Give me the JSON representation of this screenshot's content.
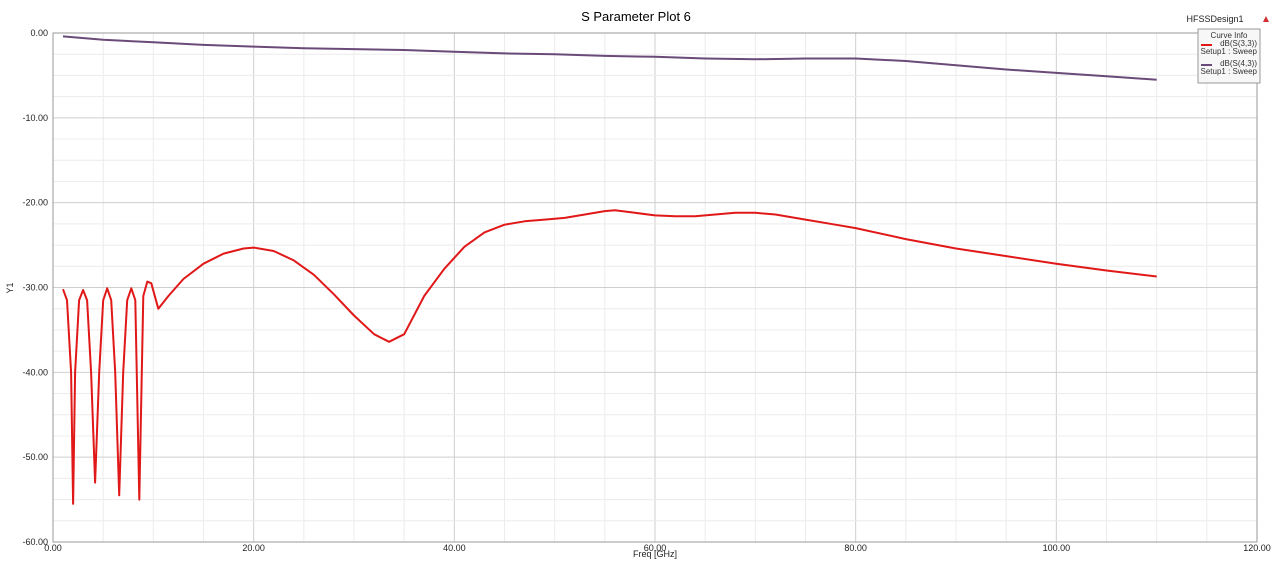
{
  "design_name": "HFSSDesign1",
  "colors": {
    "s11": "#e01818",
    "s21": "#6a4a78",
    "grid_major": "#cfcfcf",
    "grid_minor": "#ececec",
    "legend_fill": "#f7f7f7"
  },
  "chart_data": {
    "type": "line",
    "title": "S Parameter Plot 6",
    "xlabel": "Freq [GHz]",
    "ylabel": "Y1",
    "xlim": [
      0,
      120
    ],
    "ylim": [
      -60,
      0
    ],
    "grid": true,
    "legend_placement": "top-right",
    "legend_title": "Curve Info",
    "x_ticks": [
      "0.00",
      "20.00",
      "40.00",
      "60.00",
      "80.00",
      "100.00",
      "120.00"
    ],
    "y_ticks": [
      "0.00",
      "-10.00",
      "-20.00",
      "-30.00",
      "-40.00",
      "-50.00",
      "-60.00"
    ],
    "series": [
      {
        "name": "dB(S(3,3))",
        "setup": "Setup1 : Sweep",
        "color": "#e01818",
        "x": [
          1.0,
          1.4,
          1.8,
          2.0,
          2.2,
          2.6,
          3.0,
          3.4,
          3.8,
          4.2,
          4.6,
          5.0,
          5.4,
          5.8,
          6.2,
          6.6,
          7.0,
          7.4,
          7.8,
          8.2,
          8.6,
          9.0,
          9.4,
          9.8,
          10.5,
          11.5,
          13,
          15,
          17,
          19,
          20,
          22,
          24,
          26,
          28,
          30,
          32,
          33.5,
          35,
          37,
          39,
          41,
          43,
          45,
          47,
          49,
          51,
          53,
          55,
          56,
          58,
          60,
          62,
          64,
          66,
          68,
          70,
          72,
          75,
          78,
          80,
          85,
          90,
          95,
          100,
          105,
          110
        ],
        "y": [
          -30.2,
          -31.5,
          -40,
          -55.5,
          -40,
          -31.5,
          -30.3,
          -31.5,
          -40,
          -53,
          -40,
          -31.5,
          -30.1,
          -31.5,
          -40,
          -54.5,
          -40,
          -31.5,
          -30.1,
          -31.5,
          -55,
          -31,
          -29.3,
          -29.5,
          -32.5,
          -31.0,
          -29.0,
          -27.2,
          -26.0,
          -25.4,
          -25.3,
          -25.7,
          -26.8,
          -28.5,
          -30.8,
          -33.3,
          -35.5,
          -36.4,
          -35.5,
          -31.0,
          -27.8,
          -25.2,
          -23.5,
          -22.6,
          -22.2,
          -22.0,
          -21.8,
          -21.4,
          -21.0,
          -20.9,
          -21.2,
          -21.5,
          -21.6,
          -21.6,
          -21.4,
          -21.2,
          -21.2,
          -21.4,
          -22.0,
          -22.6,
          -23.0,
          -24.3,
          -25.4,
          -26.3,
          -27.2,
          -28.0,
          -28.7
        ]
      },
      {
        "name": "dB(S(4,3))",
        "setup": "Setup1 : Sweep",
        "color": "#6a4a78",
        "x": [
          1,
          5,
          10,
          15,
          20,
          25,
          30,
          35,
          40,
          45,
          50,
          55,
          60,
          65,
          70,
          75,
          80,
          85,
          90,
          95,
          100,
          105,
          110
        ],
        "y": [
          -0.4,
          -0.8,
          -1.1,
          -1.4,
          -1.6,
          -1.8,
          -1.9,
          -2.0,
          -2.2,
          -2.4,
          -2.5,
          -2.7,
          -2.8,
          -3.0,
          -3.1,
          -3.0,
          -3.0,
          -3.3,
          -3.8,
          -4.3,
          -4.7,
          -5.1,
          -5.5
        ]
      }
    ]
  }
}
